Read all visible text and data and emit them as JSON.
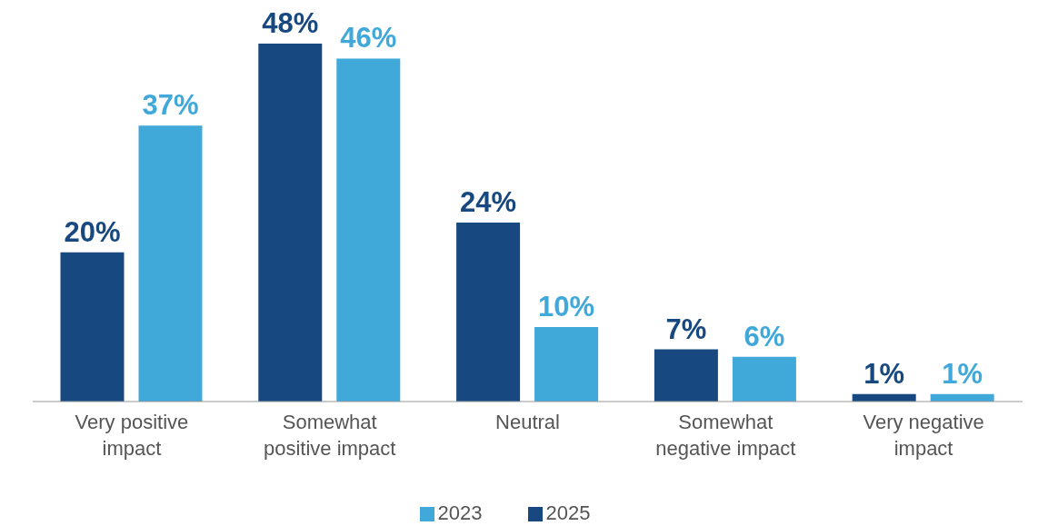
{
  "chart_data": {
    "type": "bar",
    "categories": [
      "Very positive impact",
      "Somewhat positive impact",
      "Neutral",
      "Somewhat negative impact",
      "Very negative impact"
    ],
    "series": [
      {
        "name": "2025",
        "color": "#17487f",
        "values": [
          20,
          48,
          24,
          7,
          1
        ],
        "value_labels": [
          "20%",
          "48%",
          "24%",
          "7%",
          "1%"
        ]
      },
      {
        "name": "2023",
        "color": "#41a8da",
        "values": [
          37,
          46,
          10,
          6,
          1
        ],
        "value_labels": [
          "37%",
          "46%",
          "10%",
          "6%",
          "1%"
        ]
      }
    ],
    "grid": false,
    "legend": "bottom"
  }
}
